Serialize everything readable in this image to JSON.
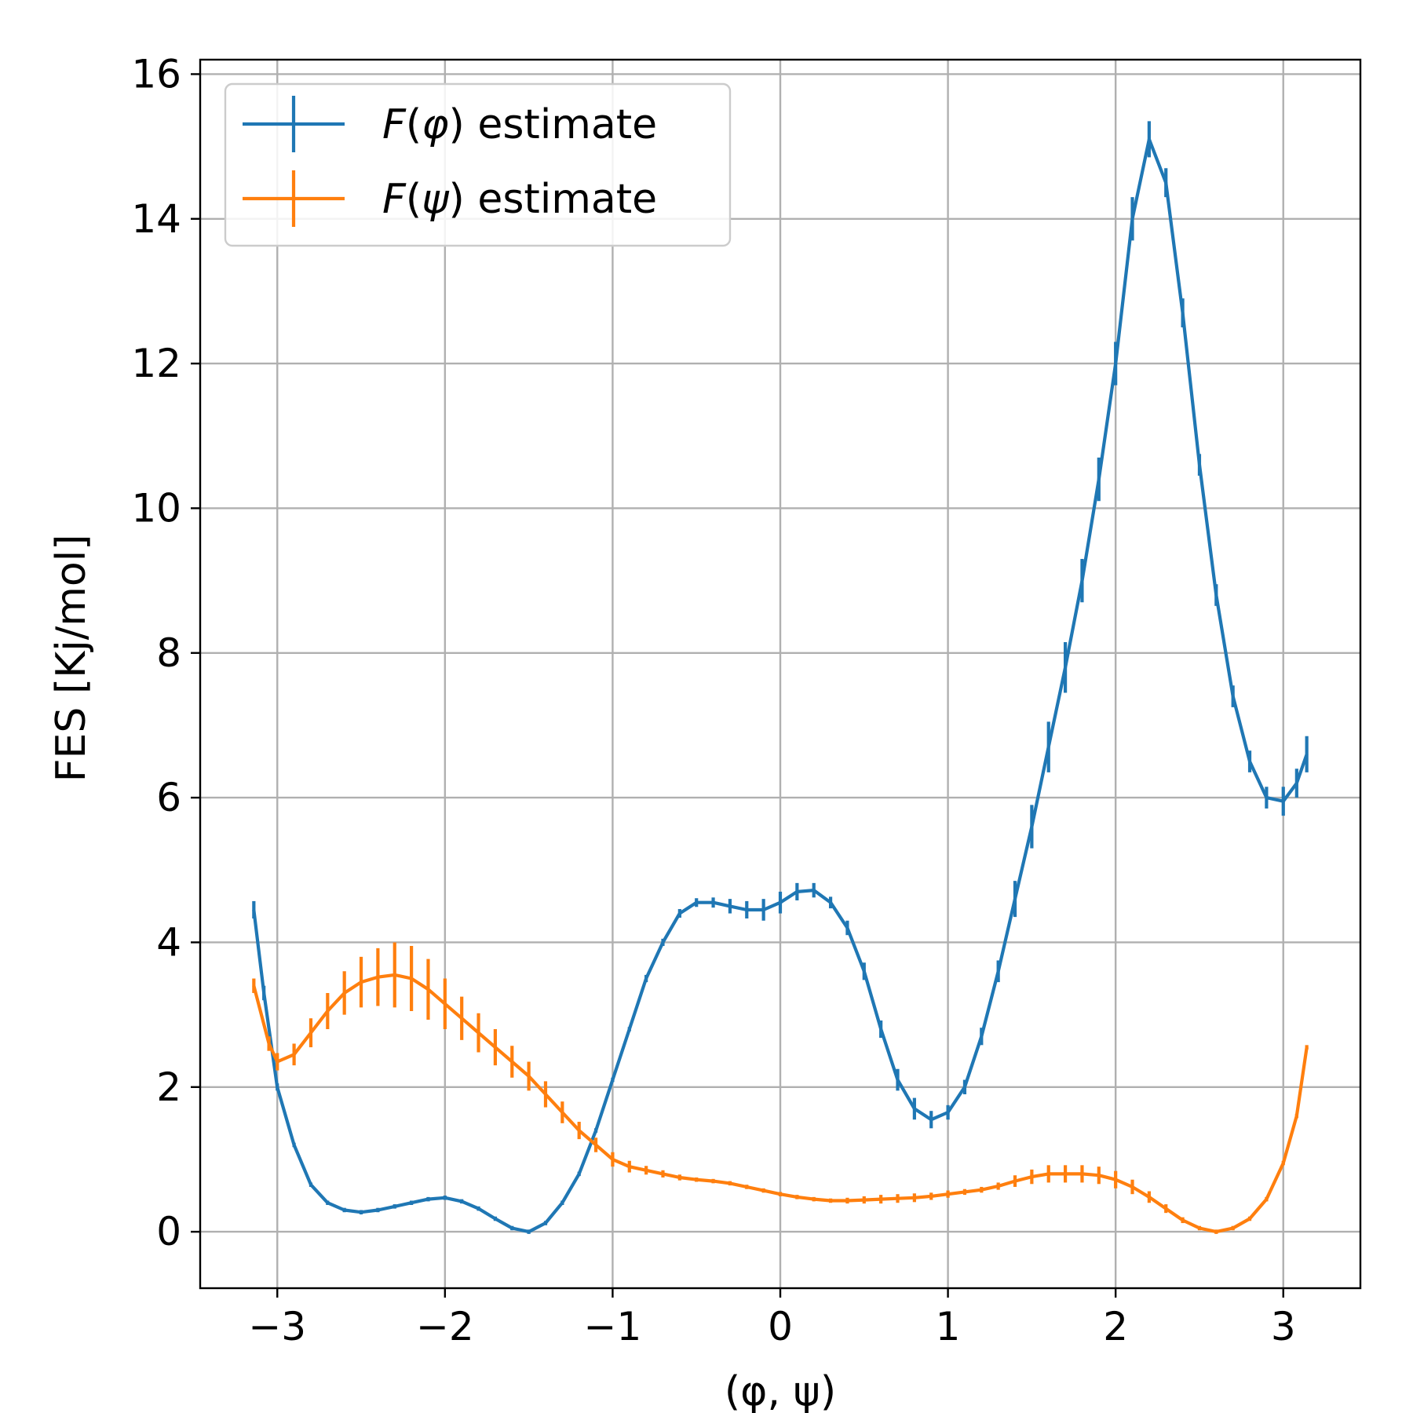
{
  "chart_data": {
    "type": "line",
    "title": "",
    "xlabel": "(φ, ψ)",
    "ylabel": "FES [Kj/mol]",
    "xlim": [
      -3.46,
      3.46
    ],
    "ylim": [
      -0.78,
      16.2
    ],
    "xticks": [
      -3,
      -2,
      -1,
      0,
      1,
      2,
      3
    ],
    "xtick_labels": [
      "−3",
      "−2",
      "−1",
      "0",
      "1",
      "2",
      "3"
    ],
    "yticks": [
      0,
      2,
      4,
      6,
      8,
      10,
      12,
      14,
      16
    ],
    "ytick_labels": [
      "0",
      "2",
      "4",
      "6",
      "8",
      "10",
      "12",
      "14",
      "16"
    ],
    "grid": true,
    "legend_position": "top-left",
    "series": [
      {
        "name": "F(φ) estimate",
        "label_var": "φ",
        "color": "#1f77b4",
        "x": [
          -3.14,
          -3.08,
          -3.0,
          -2.9,
          -2.8,
          -2.7,
          -2.6,
          -2.5,
          -2.4,
          -2.3,
          -2.2,
          -2.1,
          -2.0,
          -1.9,
          -1.8,
          -1.7,
          -1.6,
          -1.5,
          -1.4,
          -1.3,
          -1.2,
          -1.1,
          -1.0,
          -0.9,
          -0.8,
          -0.7,
          -0.6,
          -0.5,
          -0.4,
          -0.3,
          -0.2,
          -0.1,
          0.0,
          0.1,
          0.2,
          0.3,
          0.4,
          0.5,
          0.6,
          0.7,
          0.8,
          0.9,
          1.0,
          1.1,
          1.2,
          1.3,
          1.4,
          1.5,
          1.6,
          1.7,
          1.8,
          1.9,
          2.0,
          2.1,
          2.2,
          2.3,
          2.4,
          2.5,
          2.6,
          2.7,
          2.8,
          2.9,
          3.0,
          3.08,
          3.14
        ],
        "y": [
          4.45,
          3.3,
          2.0,
          1.2,
          0.65,
          0.4,
          0.3,
          0.27,
          0.3,
          0.35,
          0.4,
          0.45,
          0.47,
          0.42,
          0.32,
          0.18,
          0.05,
          0.0,
          0.12,
          0.4,
          0.8,
          1.4,
          2.1,
          2.8,
          3.5,
          4.0,
          4.4,
          4.55,
          4.55,
          4.5,
          4.45,
          4.45,
          4.55,
          4.7,
          4.72,
          4.55,
          4.2,
          3.6,
          2.8,
          2.1,
          1.7,
          1.55,
          1.65,
          2.0,
          2.7,
          3.6,
          4.6,
          5.6,
          6.7,
          7.8,
          9.0,
          10.4,
          12.0,
          14.0,
          15.1,
          14.5,
          12.7,
          10.6,
          8.8,
          7.4,
          6.5,
          6.0,
          5.95,
          6.2,
          6.6
        ],
        "err": [
          0.12,
          0.1,
          0.05,
          0.03,
          0.03,
          0.03,
          0.03,
          0.03,
          0.03,
          0.02,
          0.02,
          0.02,
          0.02,
          0.02,
          0.02,
          0.02,
          0.02,
          0.02,
          0.02,
          0.02,
          0.02,
          0.03,
          0.03,
          0.03,
          0.05,
          0.05,
          0.06,
          0.06,
          0.07,
          0.1,
          0.12,
          0.15,
          0.15,
          0.12,
          0.1,
          0.08,
          0.1,
          0.12,
          0.12,
          0.15,
          0.15,
          0.12,
          0.1,
          0.1,
          0.12,
          0.15,
          0.25,
          0.3,
          0.35,
          0.35,
          0.3,
          0.3,
          0.3,
          0.3,
          0.25,
          0.2,
          0.2,
          0.15,
          0.15,
          0.15,
          0.15,
          0.15,
          0.2,
          0.2,
          0.25
        ]
      },
      {
        "name": "F(ψ) estimate",
        "label_var": "ψ",
        "color": "#ff7f0e",
        "x": [
          -3.14,
          -3.05,
          -3.0,
          -2.9,
          -2.8,
          -2.7,
          -2.6,
          -2.5,
          -2.4,
          -2.3,
          -2.2,
          -2.1,
          -2.0,
          -1.9,
          -1.8,
          -1.7,
          -1.6,
          -1.5,
          -1.4,
          -1.3,
          -1.2,
          -1.1,
          -1.0,
          -0.9,
          -0.8,
          -0.7,
          -0.6,
          -0.5,
          -0.4,
          -0.3,
          -0.2,
          -0.1,
          0.0,
          0.1,
          0.2,
          0.3,
          0.4,
          0.5,
          0.6,
          0.7,
          0.8,
          0.9,
          1.0,
          1.1,
          1.2,
          1.3,
          1.4,
          1.5,
          1.6,
          1.7,
          1.8,
          1.9,
          2.0,
          2.1,
          2.2,
          2.3,
          2.4,
          2.5,
          2.6,
          2.7,
          2.8,
          2.9,
          3.0,
          3.08,
          3.14
        ],
        "y": [
          3.4,
          2.6,
          2.35,
          2.45,
          2.75,
          3.05,
          3.3,
          3.45,
          3.52,
          3.55,
          3.5,
          3.35,
          3.15,
          2.95,
          2.75,
          2.55,
          2.35,
          2.15,
          1.9,
          1.65,
          1.4,
          1.2,
          1.0,
          0.9,
          0.85,
          0.8,
          0.75,
          0.72,
          0.7,
          0.67,
          0.62,
          0.57,
          0.52,
          0.48,
          0.45,
          0.43,
          0.43,
          0.44,
          0.45,
          0.46,
          0.47,
          0.49,
          0.52,
          0.55,
          0.58,
          0.63,
          0.7,
          0.76,
          0.8,
          0.8,
          0.8,
          0.78,
          0.72,
          0.62,
          0.48,
          0.32,
          0.16,
          0.05,
          0.0,
          0.05,
          0.18,
          0.45,
          0.95,
          1.6,
          2.55
        ],
        "err": [
          0.1,
          0.1,
          0.12,
          0.15,
          0.2,
          0.25,
          0.3,
          0.35,
          0.4,
          0.45,
          0.45,
          0.42,
          0.35,
          0.3,
          0.27,
          0.25,
          0.22,
          0.2,
          0.18,
          0.15,
          0.12,
          0.1,
          0.1,
          0.08,
          0.06,
          0.05,
          0.04,
          0.03,
          0.03,
          0.03,
          0.02,
          0.02,
          0.02,
          0.02,
          0.02,
          0.03,
          0.04,
          0.05,
          0.06,
          0.06,
          0.06,
          0.05,
          0.05,
          0.04,
          0.04,
          0.05,
          0.08,
          0.1,
          0.12,
          0.12,
          0.12,
          0.12,
          0.12,
          0.1,
          0.08,
          0.06,
          0.04,
          0.03,
          0.02,
          0.02,
          0.02,
          0.02,
          0.02,
          0.02,
          0.02
        ]
      }
    ]
  }
}
